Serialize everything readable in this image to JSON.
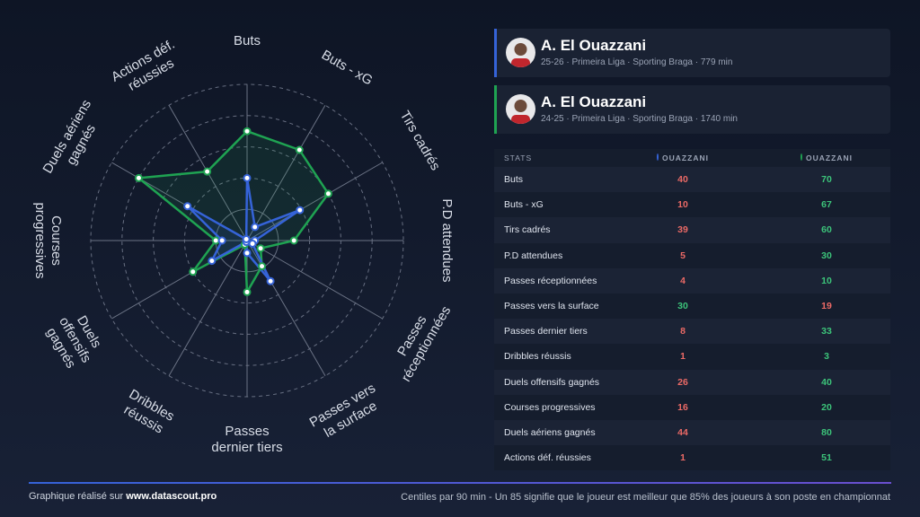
{
  "chart_data": {
    "type": "radar",
    "categories": [
      "Buts",
      "Buts - xG",
      "Tirs cadrés",
      "P.D attendues",
      "Passes réceptionnées",
      "Passes vers la surface",
      "Passes dernier tiers",
      "Dribbles réussis",
      "Duels offensifs gagnés",
      "Courses progressives",
      "Duels aériens gagnés",
      "Actions déf. réussies"
    ],
    "series": [
      {
        "name": "OUAZZANI",
        "color": "#3563d8",
        "values": [
          40,
          10,
          39,
          5,
          4,
          30,
          8,
          1,
          26,
          16,
          44,
          1
        ]
      },
      {
        "name": "OUAZZANI",
        "color": "#1fa352",
        "values": [
          70,
          67,
          60,
          30,
          10,
          19,
          33,
          3,
          40,
          20,
          80,
          51
        ]
      }
    ],
    "rlim": [
      0,
      100
    ],
    "rticks": [
      20,
      40,
      60,
      80,
      100
    ]
  },
  "players": [
    {
      "name": "A. El Ouazzani",
      "info": "25-26 · Primeira Liga · Sporting Braga · 779 min"
    },
    {
      "name": "A. El Ouazzani",
      "info": "24-25 · Primeira Liga · Sporting Braga · 1740 min"
    }
  ],
  "table": {
    "header": "STATS"
  },
  "footer": {
    "credit": "Graphique réalisé sur",
    "site": "www.datascout.pro",
    "note": "Centiles par 90 min - Un 85 signifie que le joueur est meilleur que 85% des joueurs à son poste en championnat"
  }
}
